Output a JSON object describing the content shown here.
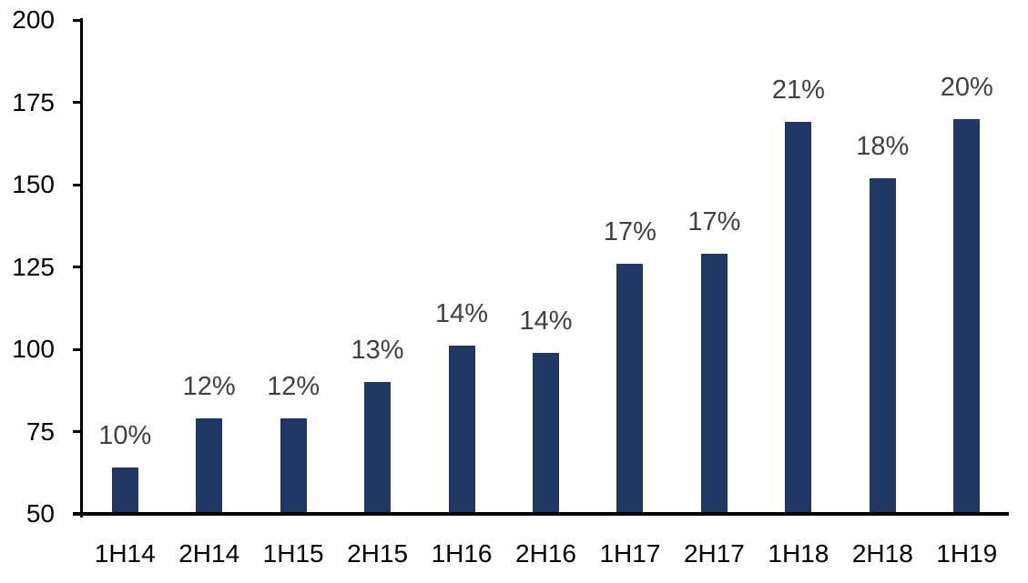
{
  "chart_data": {
    "type": "bar",
    "title": "",
    "xlabel": "",
    "ylabel": "",
    "categories": [
      "1H14",
      "2H14",
      "1H15",
      "2H15",
      "1H16",
      "2H16",
      "1H17",
      "2H17",
      "1H18",
      "2H18",
      "1H19"
    ],
    "values": [
      64,
      79,
      79,
      90,
      101,
      99,
      126,
      129,
      169,
      152,
      170
    ],
    "data_labels": [
      "10%",
      "12%",
      "12%",
      "13%",
      "14%",
      "14%",
      "17%",
      "17%",
      "21%",
      "18%",
      "20%"
    ],
    "ylim": [
      50,
      200
    ],
    "yticks": [
      50,
      75,
      100,
      125,
      150,
      175,
      200
    ],
    "grid": "off",
    "legend": "none",
    "colors": {
      "bar": "#1F3864",
      "data_label": "#404040",
      "axis": "#000000",
      "background": "#ffffff"
    }
  }
}
